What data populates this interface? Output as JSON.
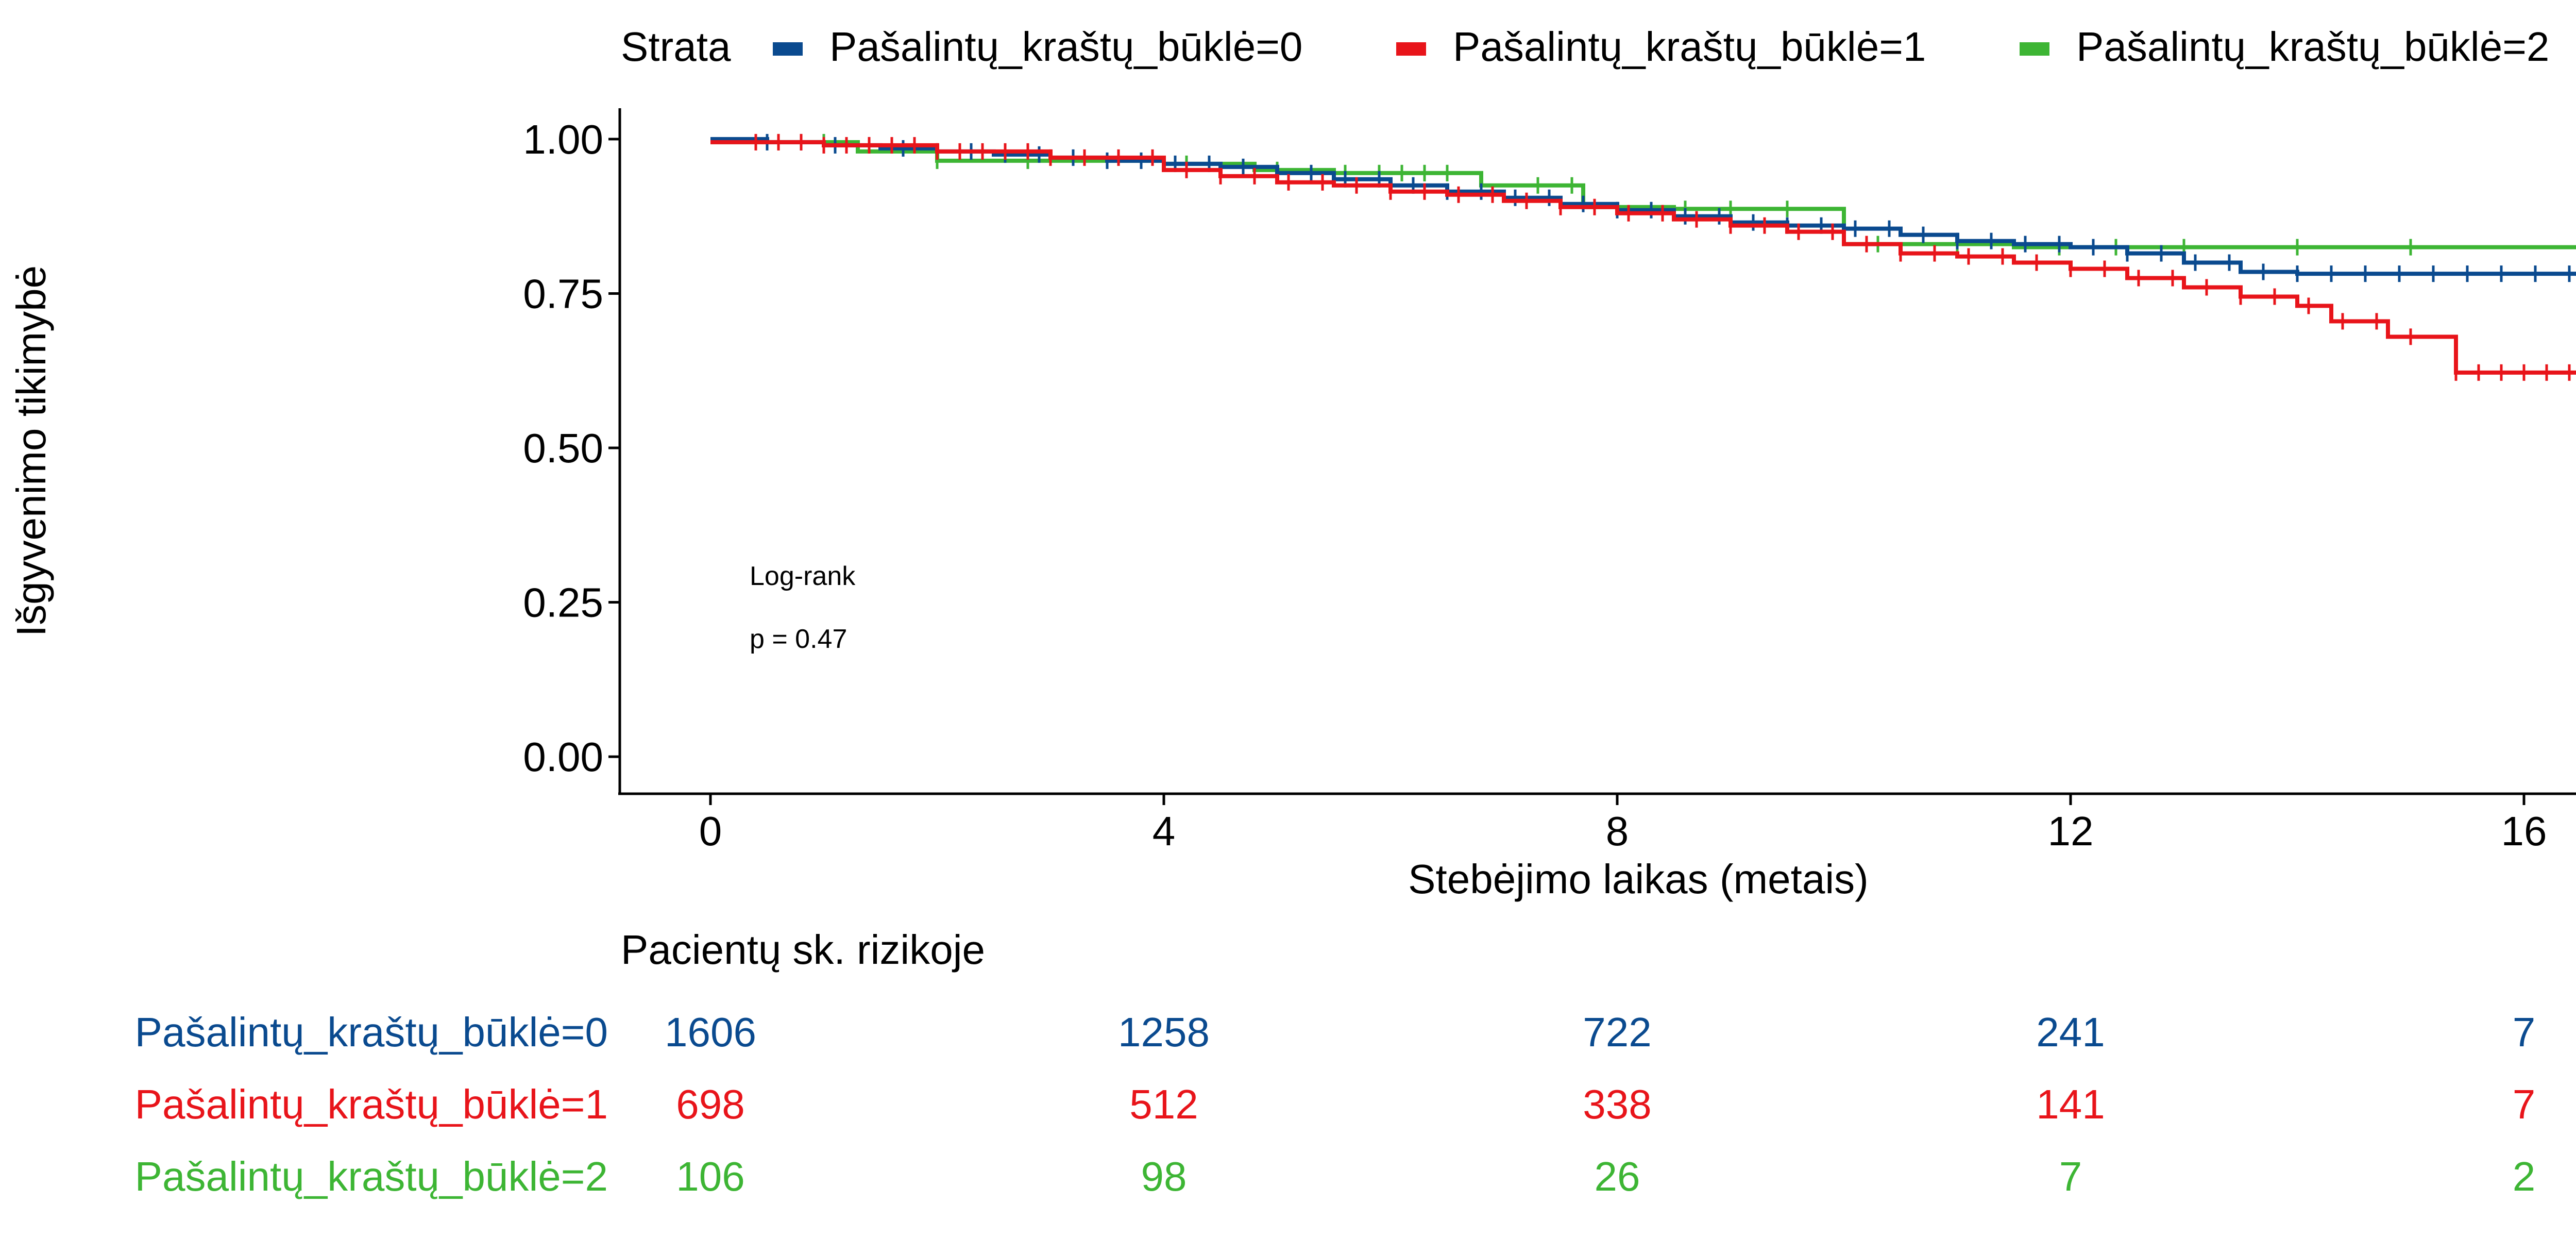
{
  "chart_data": {
    "type": "line",
    "xlabel": "Stebėjimo laikas (metais)",
    "ylabel": "Išgyvenimo tikimybė",
    "xlim": [
      -0.8,
      16.8
    ],
    "ylim": [
      -0.06,
      1.05
    ],
    "x_ticks": [
      0,
      4,
      8,
      12,
      16
    ],
    "y_ticks": [
      0,
      0.25,
      0.5,
      0.75,
      1.0
    ],
    "y_tick_labels": [
      "0.00",
      "0.25",
      "0.50",
      "0.75",
      "1.00"
    ],
    "legend": {
      "title": "Strata",
      "position": "top"
    },
    "annotation": {
      "line1": "Log-rank",
      "line2": "p = 0.47"
    },
    "series": [
      {
        "name": "Pašalintų_kraštų_būklė=0",
        "color": "#0a4a8f",
        "steps": [
          [
            0,
            1.0
          ],
          [
            0.5,
            0.995
          ],
          [
            1.0,
            0.99
          ],
          [
            1.5,
            0.985
          ],
          [
            2.0,
            0.98
          ],
          [
            2.5,
            0.975
          ],
          [
            3.0,
            0.97
          ],
          [
            3.5,
            0.965
          ],
          [
            4.0,
            0.96
          ],
          [
            4.5,
            0.955
          ],
          [
            5.0,
            0.945
          ],
          [
            5.5,
            0.935
          ],
          [
            6.0,
            0.925
          ],
          [
            6.5,
            0.915
          ],
          [
            7.0,
            0.905
          ],
          [
            7.5,
            0.895
          ],
          [
            8.0,
            0.885
          ],
          [
            8.5,
            0.875
          ],
          [
            9.0,
            0.865
          ],
          [
            9.5,
            0.86
          ],
          [
            10.0,
            0.855
          ],
          [
            10.5,
            0.845
          ],
          [
            11.0,
            0.835
          ],
          [
            11.5,
            0.83
          ],
          [
            12.0,
            0.825
          ],
          [
            12.5,
            0.815
          ],
          [
            13.0,
            0.8
          ],
          [
            13.5,
            0.785
          ],
          [
            14.0,
            0.782
          ],
          [
            16.8,
            0.782
          ]
        ],
        "censor_x": [
          0.5,
          0.8,
          1.1,
          1.4,
          1.7,
          2.0,
          2.3,
          2.6,
          2.9,
          3.2,
          3.5,
          3.8,
          4.1,
          4.4,
          4.7,
          5.0,
          5.3,
          5.6,
          5.9,
          6.2,
          6.5,
          6.8,
          7.1,
          7.4,
          7.7,
          8.0,
          8.3,
          8.6,
          8.9,
          9.2,
          9.5,
          9.8,
          10.1,
          10.4,
          10.7,
          11.0,
          11.3,
          11.6,
          11.9,
          12.2,
          12.5,
          12.8,
          13.1,
          13.4,
          13.7,
          14.0,
          14.3,
          14.6,
          14.9,
          15.2,
          15.5,
          15.8,
          16.1,
          16.4,
          16.6
        ]
      },
      {
        "name": "Pašalintų_kraštų_būklė=1",
        "color": "#e8141a",
        "steps": [
          [
            0,
            0.995
          ],
          [
            1.0,
            0.99
          ],
          [
            2.0,
            0.98
          ],
          [
            3.0,
            0.97
          ],
          [
            4.0,
            0.95
          ],
          [
            4.5,
            0.94
          ],
          [
            5.0,
            0.93
          ],
          [
            5.5,
            0.925
          ],
          [
            6.0,
            0.915
          ],
          [
            6.5,
            0.91
          ],
          [
            7.0,
            0.9
          ],
          [
            7.5,
            0.89
          ],
          [
            8.0,
            0.88
          ],
          [
            8.5,
            0.87
          ],
          [
            9.0,
            0.86
          ],
          [
            9.5,
            0.85
          ],
          [
            10.0,
            0.83
          ],
          [
            10.5,
            0.815
          ],
          [
            11.0,
            0.81
          ],
          [
            11.5,
            0.8
          ],
          [
            12.0,
            0.79
          ],
          [
            12.5,
            0.775
          ],
          [
            13.0,
            0.76
          ],
          [
            13.5,
            0.745
          ],
          [
            14.0,
            0.73
          ],
          [
            14.3,
            0.705
          ],
          [
            14.8,
            0.68
          ],
          [
            15.4,
            0.622
          ],
          [
            16.8,
            0.622
          ]
        ],
        "censor_x": [
          0.4,
          0.6,
          0.8,
          1.0,
          1.2,
          1.4,
          1.6,
          1.8,
          2.0,
          2.2,
          2.4,
          2.6,
          2.8,
          3.0,
          3.3,
          3.6,
          3.9,
          4.2,
          4.5,
          4.8,
          5.1,
          5.4,
          5.7,
          6.0,
          6.3,
          6.6,
          6.9,
          7.2,
          7.5,
          7.8,
          8.1,
          8.4,
          8.7,
          9.0,
          9.3,
          9.6,
          9.9,
          10.2,
          10.5,
          10.8,
          11.1,
          11.4,
          11.7,
          12.0,
          12.3,
          12.6,
          12.9,
          13.2,
          13.5,
          13.8,
          14.1,
          14.4,
          14.7,
          15.0,
          15.4,
          15.6,
          15.8,
          16.0,
          16.2,
          16.4
        ]
      },
      {
        "name": "Pašalintų_kraštų_būklė=2",
        "color": "#3db534",
        "steps": [
          [
            0,
            0.995
          ],
          [
            1.3,
            0.98
          ],
          [
            2.0,
            0.965
          ],
          [
            4.0,
            0.96
          ],
          [
            4.8,
            0.95
          ],
          [
            5.5,
            0.945
          ],
          [
            6.8,
            0.925
          ],
          [
            7.7,
            0.89
          ],
          [
            8.5,
            0.887
          ],
          [
            10.0,
            0.83
          ],
          [
            11.5,
            0.825
          ],
          [
            16.8,
            0.825
          ]
        ],
        "censor_x": [
          0.6,
          1.0,
          2.0,
          2.8,
          4.2,
          5.0,
          5.6,
          5.9,
          6.1,
          6.3,
          6.5,
          7.3,
          7.6,
          8.6,
          9.0,
          9.5,
          10.3,
          11.0,
          11.9,
          12.4,
          13.0,
          14.0,
          15.0,
          16.5
        ]
      }
    ]
  },
  "risk_table": {
    "title": "Pacientų sk. rizikoje",
    "x": [
      0,
      4,
      8,
      12,
      16
    ],
    "rows": [
      {
        "label": "Pašalintų_kraštų_būklė=0",
        "color": "#0a4a8f",
        "values": [
          "1606",
          "1258",
          "722",
          "241",
          "7"
        ]
      },
      {
        "label": "Pašalintų_kraštų_būklė=1",
        "color": "#e8141a",
        "values": [
          "698",
          "512",
          "338",
          "141",
          "7"
        ]
      },
      {
        "label": "Pašalintų_kraštų_būklė=2",
        "color": "#3db534",
        "values": [
          "106",
          "98",
          "26",
          "7",
          "2"
        ]
      }
    ]
  }
}
